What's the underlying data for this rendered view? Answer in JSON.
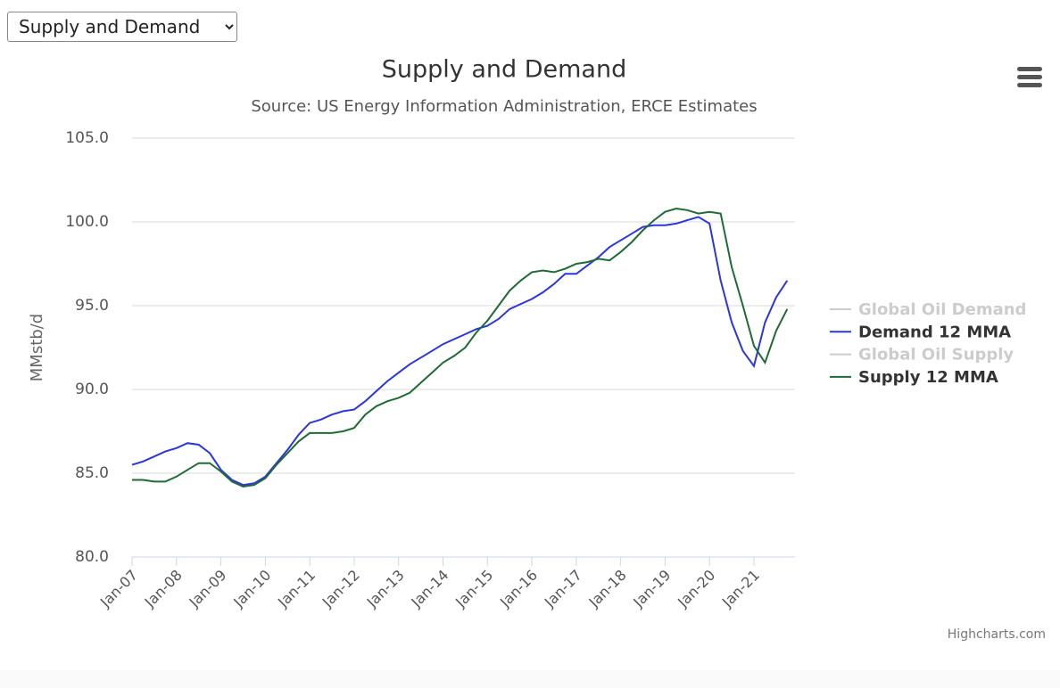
{
  "dropdown": {
    "options": [
      "Supply and Demand"
    ]
  },
  "chart_data": {
    "type": "line",
    "title": "Supply and Demand",
    "subtitle": "Source: US Energy Information Administration, ERCE Estimates",
    "y_label": "MMstb/d",
    "credits": "Highcharts.com",
    "categories": [
      "Jan-07",
      null,
      null,
      null,
      "Jan-08",
      null,
      null,
      null,
      "Jan-09",
      null,
      null,
      null,
      "Jan-10",
      null,
      null,
      null,
      "Jan-11",
      null,
      null,
      null,
      "Jan-12",
      null,
      null,
      null,
      "Jan-13",
      null,
      null,
      null,
      "Jan-14",
      null,
      null,
      null,
      "Jan-15",
      null,
      null,
      null,
      "Jan-16",
      null,
      null,
      null,
      "Jan-17",
      null,
      null,
      null,
      "Jan-18",
      null,
      null,
      null,
      "Jan-19",
      null,
      null,
      null,
      "Jan-20",
      null,
      null,
      null,
      "Jan-21",
      null,
      null,
      null
    ],
    "ylim": [
      80,
      105
    ],
    "yticks": [
      {
        "value": 80,
        "label": "80.0"
      },
      {
        "value": 85,
        "label": "85.0"
      },
      {
        "value": 90,
        "label": "90.0"
      },
      {
        "value": 95,
        "label": "95.0"
      },
      {
        "value": 100,
        "label": "100.0"
      },
      {
        "value": 105,
        "label": "105.0"
      }
    ],
    "grid": true,
    "legend": "right",
    "series": [
      {
        "name": "Global Oil Demand",
        "color": "#cccccc",
        "visible": false
      },
      {
        "name": "Demand 12 MMA",
        "color": "#2b35e0",
        "visible": true,
        "values": [
          85.5,
          85.7,
          86.0,
          86.3,
          86.5,
          86.8,
          86.7,
          86.2,
          85.2,
          84.6,
          84.3,
          84.4,
          84.8,
          85.6,
          86.4,
          87.3,
          88.0,
          88.2,
          88.5,
          88.7,
          88.8,
          89.3,
          89.9,
          90.5,
          91.0,
          91.5,
          91.9,
          92.3,
          92.7,
          93.0,
          93.3,
          93.6,
          93.8,
          94.2,
          94.8,
          95.1,
          95.4,
          95.8,
          96.3,
          96.9,
          96.9,
          97.4,
          97.9,
          98.5,
          98.9,
          99.3,
          99.7,
          99.8,
          99.8,
          99.9,
          100.1,
          100.3,
          99.9,
          96.5,
          94.0,
          92.3,
          91.4,
          94.0,
          95.5,
          96.5
        ]
      },
      {
        "name": "Global Oil Supply",
        "color": "#cccccc",
        "visible": false
      },
      {
        "name": "Supply 12 MMA",
        "color": "#1e6b35",
        "visible": true,
        "values": [
          84.6,
          84.6,
          84.5,
          84.5,
          84.8,
          85.2,
          85.6,
          85.6,
          85.1,
          84.5,
          84.2,
          84.3,
          84.7,
          85.5,
          86.2,
          86.9,
          87.4,
          87.4,
          87.4,
          87.5,
          87.7,
          88.5,
          89.0,
          89.3,
          89.5,
          89.8,
          90.4,
          91.0,
          91.6,
          92.0,
          92.5,
          93.4,
          94.1,
          95.0,
          95.9,
          96.5,
          97.0,
          97.1,
          97.0,
          97.2,
          97.5,
          97.6,
          97.8,
          97.7,
          98.2,
          98.8,
          99.5,
          100.1,
          100.6,
          100.8,
          100.7,
          100.5,
          100.6,
          100.5,
          97.3,
          95.0,
          92.6,
          91.6,
          93.5,
          94.8
        ]
      }
    ]
  }
}
